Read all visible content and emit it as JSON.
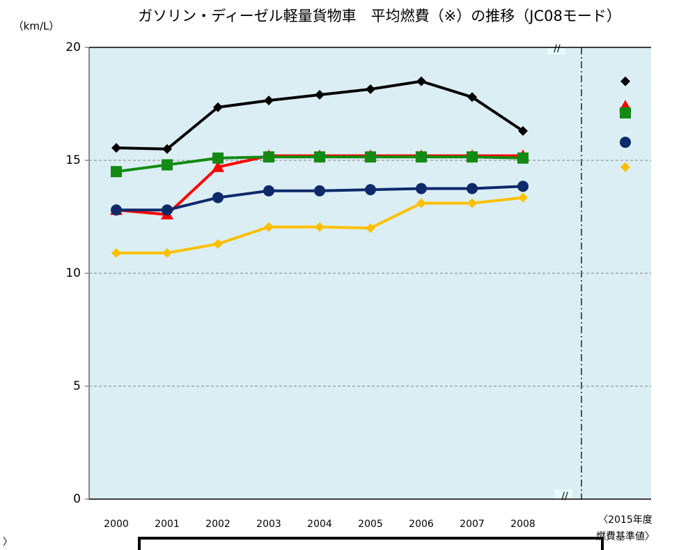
{
  "chart_data": {
    "type": "line",
    "title": "ガソリン・ディーゼル軽量貨物車　平均燃費（※）の推移（JC08モード）",
    "y_unit": "（km/L）",
    "categories": [
      "2000",
      "2001",
      "2002",
      "2003",
      "2004",
      "2005",
      "2006",
      "2007",
      "2008"
    ],
    "standard_label": [
      "〈2015年度",
      "燃費基準値〉"
    ],
    "note_fragment": "〉",
    "ylim": [
      0,
      20
    ],
    "yticks": [
      0,
      5,
      10,
      15,
      20
    ],
    "grid": true,
    "series": [
      {
        "color": "#000000",
        "marker": "diamond",
        "values": [
          15.55,
          15.5,
          17.35,
          17.65,
          17.9,
          18.15,
          18.5,
          17.8,
          16.3
        ],
        "standard": 18.5
      },
      {
        "color": "#ff0000",
        "marker": "triangle",
        "values": [
          12.8,
          12.6,
          14.7,
          15.2,
          15.2,
          15.2,
          15.2,
          15.2,
          15.2
        ],
        "standard": 17.4
      },
      {
        "color": "#138a13",
        "marker": "square",
        "values": [
          14.5,
          14.8,
          15.1,
          15.15,
          15.15,
          15.15,
          15.15,
          15.15,
          15.1
        ],
        "standard": 17.1
      },
      {
        "color": "#0e2a6b",
        "marker": "circle",
        "values": [
          12.8,
          12.8,
          13.35,
          13.65,
          13.65,
          13.7,
          13.75,
          13.75,
          13.85
        ],
        "standard": 15.8
      },
      {
        "color": "#ffc000",
        "marker": "diamond",
        "values": [
          10.9,
          10.9,
          11.3,
          12.05,
          12.05,
          12.0,
          13.1,
          13.1,
          13.35
        ],
        "standard": 14.7
      }
    ]
  }
}
